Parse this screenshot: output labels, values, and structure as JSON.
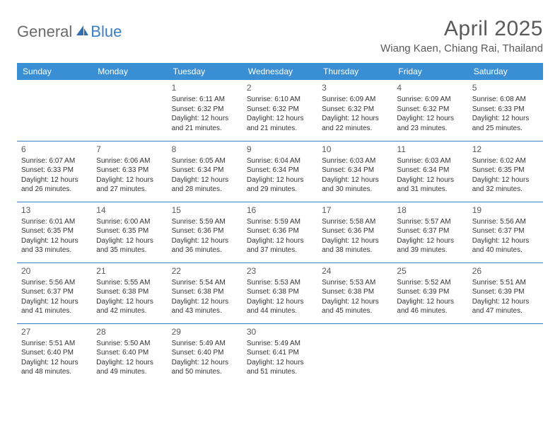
{
  "brand": {
    "text_general": "General",
    "text_blue": "Blue",
    "icon_color": "#2f6fb0"
  },
  "title": "April 2025",
  "location": "Wiang Kaen, Chiang Rai, Thailand",
  "colors": {
    "header_bg": "#3a8fd4",
    "header_text": "#ffffff",
    "rule": "#3a7fc4",
    "body_text": "#333333",
    "title_text": "#5a5a5a"
  },
  "day_headers": [
    "Sunday",
    "Monday",
    "Tuesday",
    "Wednesday",
    "Thursday",
    "Friday",
    "Saturday"
  ],
  "weeks": [
    [
      null,
      null,
      {
        "n": "1",
        "sr": "Sunrise: 6:11 AM",
        "ss": "Sunset: 6:32 PM",
        "d1": "Daylight: 12 hours",
        "d2": "and 21 minutes."
      },
      {
        "n": "2",
        "sr": "Sunrise: 6:10 AM",
        "ss": "Sunset: 6:32 PM",
        "d1": "Daylight: 12 hours",
        "d2": "and 21 minutes."
      },
      {
        "n": "3",
        "sr": "Sunrise: 6:09 AM",
        "ss": "Sunset: 6:32 PM",
        "d1": "Daylight: 12 hours",
        "d2": "and 22 minutes."
      },
      {
        "n": "4",
        "sr": "Sunrise: 6:09 AM",
        "ss": "Sunset: 6:32 PM",
        "d1": "Daylight: 12 hours",
        "d2": "and 23 minutes."
      },
      {
        "n": "5",
        "sr": "Sunrise: 6:08 AM",
        "ss": "Sunset: 6:33 PM",
        "d1": "Daylight: 12 hours",
        "d2": "and 25 minutes."
      }
    ],
    [
      {
        "n": "6",
        "sr": "Sunrise: 6:07 AM",
        "ss": "Sunset: 6:33 PM",
        "d1": "Daylight: 12 hours",
        "d2": "and 26 minutes."
      },
      {
        "n": "7",
        "sr": "Sunrise: 6:06 AM",
        "ss": "Sunset: 6:33 PM",
        "d1": "Daylight: 12 hours",
        "d2": "and 27 minutes."
      },
      {
        "n": "8",
        "sr": "Sunrise: 6:05 AM",
        "ss": "Sunset: 6:34 PM",
        "d1": "Daylight: 12 hours",
        "d2": "and 28 minutes."
      },
      {
        "n": "9",
        "sr": "Sunrise: 6:04 AM",
        "ss": "Sunset: 6:34 PM",
        "d1": "Daylight: 12 hours",
        "d2": "and 29 minutes."
      },
      {
        "n": "10",
        "sr": "Sunrise: 6:03 AM",
        "ss": "Sunset: 6:34 PM",
        "d1": "Daylight: 12 hours",
        "d2": "and 30 minutes."
      },
      {
        "n": "11",
        "sr": "Sunrise: 6:03 AM",
        "ss": "Sunset: 6:34 PM",
        "d1": "Daylight: 12 hours",
        "d2": "and 31 minutes."
      },
      {
        "n": "12",
        "sr": "Sunrise: 6:02 AM",
        "ss": "Sunset: 6:35 PM",
        "d1": "Daylight: 12 hours",
        "d2": "and 32 minutes."
      }
    ],
    [
      {
        "n": "13",
        "sr": "Sunrise: 6:01 AM",
        "ss": "Sunset: 6:35 PM",
        "d1": "Daylight: 12 hours",
        "d2": "and 33 minutes."
      },
      {
        "n": "14",
        "sr": "Sunrise: 6:00 AM",
        "ss": "Sunset: 6:35 PM",
        "d1": "Daylight: 12 hours",
        "d2": "and 35 minutes."
      },
      {
        "n": "15",
        "sr": "Sunrise: 5:59 AM",
        "ss": "Sunset: 6:36 PM",
        "d1": "Daylight: 12 hours",
        "d2": "and 36 minutes."
      },
      {
        "n": "16",
        "sr": "Sunrise: 5:59 AM",
        "ss": "Sunset: 6:36 PM",
        "d1": "Daylight: 12 hours",
        "d2": "and 37 minutes."
      },
      {
        "n": "17",
        "sr": "Sunrise: 5:58 AM",
        "ss": "Sunset: 6:36 PM",
        "d1": "Daylight: 12 hours",
        "d2": "and 38 minutes."
      },
      {
        "n": "18",
        "sr": "Sunrise: 5:57 AM",
        "ss": "Sunset: 6:37 PM",
        "d1": "Daylight: 12 hours",
        "d2": "and 39 minutes."
      },
      {
        "n": "19",
        "sr": "Sunrise: 5:56 AM",
        "ss": "Sunset: 6:37 PM",
        "d1": "Daylight: 12 hours",
        "d2": "and 40 minutes."
      }
    ],
    [
      {
        "n": "20",
        "sr": "Sunrise: 5:56 AM",
        "ss": "Sunset: 6:37 PM",
        "d1": "Daylight: 12 hours",
        "d2": "and 41 minutes."
      },
      {
        "n": "21",
        "sr": "Sunrise: 5:55 AM",
        "ss": "Sunset: 6:38 PM",
        "d1": "Daylight: 12 hours",
        "d2": "and 42 minutes."
      },
      {
        "n": "22",
        "sr": "Sunrise: 5:54 AM",
        "ss": "Sunset: 6:38 PM",
        "d1": "Daylight: 12 hours",
        "d2": "and 43 minutes."
      },
      {
        "n": "23",
        "sr": "Sunrise: 5:53 AM",
        "ss": "Sunset: 6:38 PM",
        "d1": "Daylight: 12 hours",
        "d2": "and 44 minutes."
      },
      {
        "n": "24",
        "sr": "Sunrise: 5:53 AM",
        "ss": "Sunset: 6:38 PM",
        "d1": "Daylight: 12 hours",
        "d2": "and 45 minutes."
      },
      {
        "n": "25",
        "sr": "Sunrise: 5:52 AM",
        "ss": "Sunset: 6:39 PM",
        "d1": "Daylight: 12 hours",
        "d2": "and 46 minutes."
      },
      {
        "n": "26",
        "sr": "Sunrise: 5:51 AM",
        "ss": "Sunset: 6:39 PM",
        "d1": "Daylight: 12 hours",
        "d2": "and 47 minutes."
      }
    ],
    [
      {
        "n": "27",
        "sr": "Sunrise: 5:51 AM",
        "ss": "Sunset: 6:40 PM",
        "d1": "Daylight: 12 hours",
        "d2": "and 48 minutes."
      },
      {
        "n": "28",
        "sr": "Sunrise: 5:50 AM",
        "ss": "Sunset: 6:40 PM",
        "d1": "Daylight: 12 hours",
        "d2": "and 49 minutes."
      },
      {
        "n": "29",
        "sr": "Sunrise: 5:49 AM",
        "ss": "Sunset: 6:40 PM",
        "d1": "Daylight: 12 hours",
        "d2": "and 50 minutes."
      },
      {
        "n": "30",
        "sr": "Sunrise: 5:49 AM",
        "ss": "Sunset: 6:41 PM",
        "d1": "Daylight: 12 hours",
        "d2": "and 51 minutes."
      },
      null,
      null,
      null
    ]
  ]
}
